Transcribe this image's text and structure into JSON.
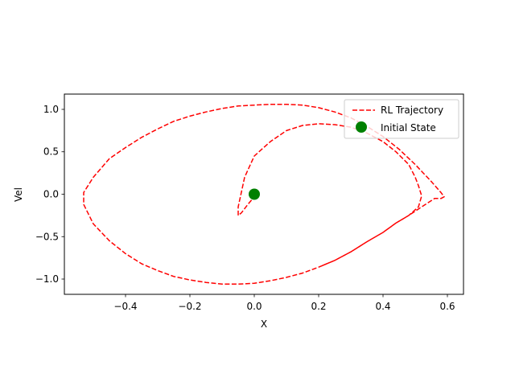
{
  "chart_data": {
    "type": "line",
    "xlabel": "X",
    "ylabel": "Vel",
    "xlim": [
      -0.59,
      0.65
    ],
    "ylim": [
      -1.18,
      1.18
    ],
    "xticks": [
      -0.4,
      -0.2,
      0.0,
      0.2,
      0.4,
      0.6
    ],
    "xtick_labels": [
      "−0.4",
      "−0.2",
      "0.0",
      "0.2",
      "0.4",
      "0.6"
    ],
    "yticks": [
      -1.0,
      -0.5,
      0.0,
      0.5,
      1.0
    ],
    "ytick_labels": [
      "−1.0",
      "−0.5",
      "0.0",
      "0.5",
      "1.0"
    ],
    "grid": false,
    "legend_position": "top-right",
    "series": [
      {
        "name": "RL Trajectory",
        "color": "#ff0000",
        "style": "dashed",
        "x": [
          0.0,
          0.0,
          -0.02,
          -0.04,
          -0.05,
          -0.05,
          -0.03,
          0.0,
          0.05,
          0.1,
          0.15,
          0.2,
          0.25,
          0.3,
          0.35,
          0.4,
          0.44,
          0.48,
          0.5,
          0.51,
          0.52,
          0.51,
          0.48,
          0.44,
          0.4,
          0.35,
          0.3,
          0.25,
          0.2,
          0.15,
          0.1,
          0.05,
          0.0,
          -0.05,
          -0.1,
          -0.15,
          -0.2,
          -0.25,
          -0.3,
          -0.35,
          -0.4,
          -0.45,
          -0.5,
          -0.53,
          -0.53,
          -0.5,
          -0.45,
          -0.4,
          -0.35,
          -0.3,
          -0.25,
          -0.2,
          -0.15,
          -0.1,
          -0.05,
          0.0,
          0.05,
          0.1,
          0.15,
          0.2,
          0.25,
          0.3,
          0.35,
          0.4,
          0.45,
          0.5,
          0.55,
          0.58,
          0.59,
          0.58,
          0.56,
          0.52,
          0.48,
          0.44,
          0.4,
          0.35,
          0.3,
          0.25,
          0.2
        ],
        "y": [
          0.0,
          -0.03,
          -0.12,
          -0.22,
          -0.25,
          -0.15,
          0.2,
          0.45,
          0.62,
          0.75,
          0.81,
          0.83,
          0.82,
          0.79,
          0.72,
          0.62,
          0.5,
          0.35,
          0.2,
          0.1,
          -0.02,
          -0.15,
          -0.25,
          -0.34,
          -0.45,
          -0.56,
          -0.68,
          -0.78,
          -0.86,
          -0.93,
          -0.98,
          -1.02,
          -1.05,
          -1.06,
          -1.06,
          -1.04,
          -1.01,
          -0.97,
          -0.9,
          -0.82,
          -0.7,
          -0.55,
          -0.35,
          -0.12,
          0.02,
          0.2,
          0.42,
          0.55,
          0.67,
          0.77,
          0.86,
          0.92,
          0.97,
          1.01,
          1.04,
          1.05,
          1.06,
          1.06,
          1.05,
          1.02,
          0.97,
          0.9,
          0.8,
          0.68,
          0.53,
          0.35,
          0.15,
          0.02,
          -0.03,
          -0.05,
          -0.05,
          -0.15,
          -0.25,
          -0.34,
          -0.45,
          -0.56,
          -0.68,
          -0.78,
          -0.86
        ]
      },
      {
        "name": "Initial State",
        "color": "#008000",
        "style": "marker",
        "x": [
          0.0
        ],
        "y": [
          0.0
        ]
      }
    ]
  }
}
